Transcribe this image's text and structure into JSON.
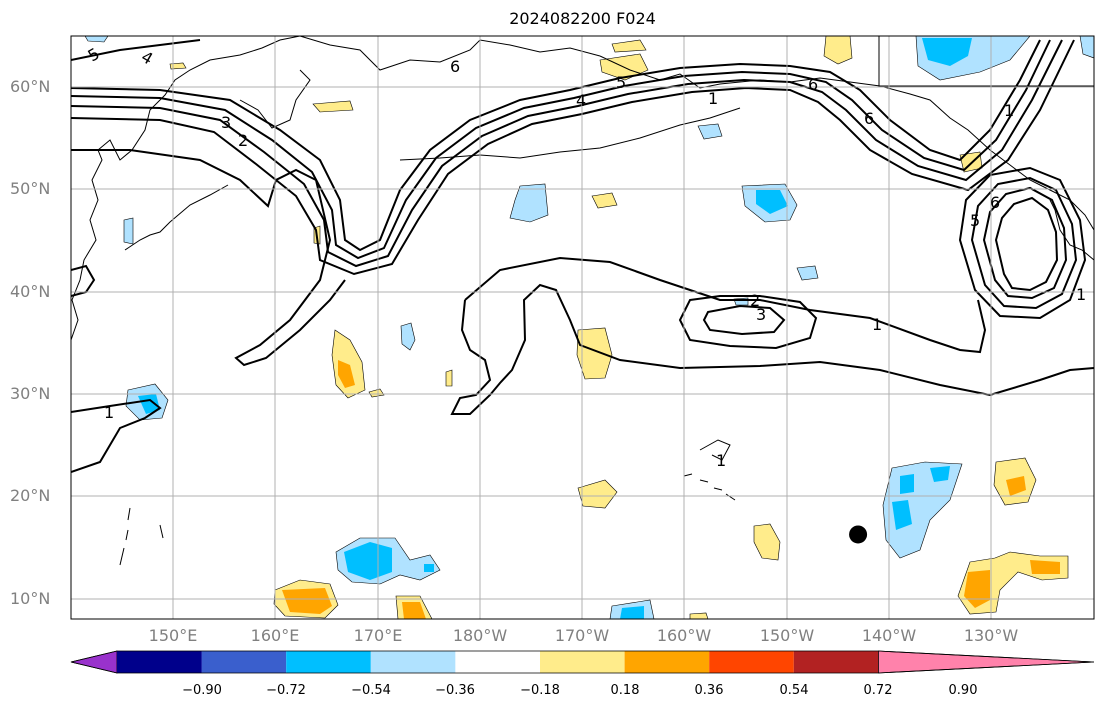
{
  "title": "2024082200 F024",
  "map": {
    "lat_labels": [
      "60°N",
      "50°N",
      "40°N",
      "30°N",
      "20°N",
      "10°N"
    ],
    "lon_labels": [
      "150°E",
      "160°E",
      "170°E",
      "180°W",
      "170°W",
      "160°W",
      "150°W",
      "140°W",
      "130°W"
    ],
    "contour_labels": [
      "5",
      "4",
      "3",
      "2",
      "6",
      "4",
      "5",
      "6",
      "1",
      "5",
      "6",
      "2",
      "3",
      "1",
      "1",
      "1",
      "6",
      "5",
      "1",
      "1"
    ],
    "marker": {
      "lon": -143,
      "lat": 16.3,
      "label": ""
    }
  },
  "colorbar": {
    "ticks": [
      "−0.90",
      "−0.72",
      "−0.54",
      "−0.36",
      "−0.18",
      "0.18",
      "0.36",
      "0.54",
      "0.72",
      "0.90"
    ],
    "colors": [
      "#9932cc",
      "#00008b",
      "#3a5fcd",
      "#00bfff",
      "#b0e2ff",
      "#ffffff",
      "#ffec8b",
      "#ffa500",
      "#ff4500",
      "#b22222",
      "#ff82ab"
    ]
  },
  "colors": {
    "light_blue": "#b0e2ff",
    "blue": "#00bfff",
    "yellow": "#ffec8b",
    "orange": "#ffa500",
    "contour": "#000000",
    "grid": "#b0b0b0"
  }
}
